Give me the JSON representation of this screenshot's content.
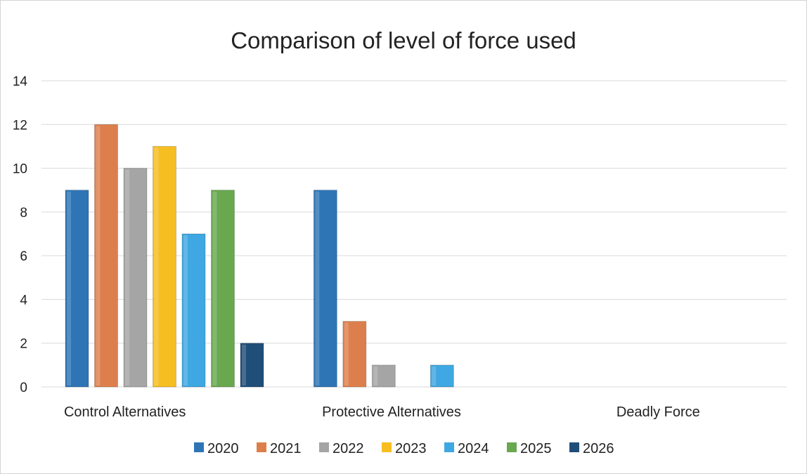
{
  "chart_data": {
    "type": "bar",
    "title": "Comparison of level of force used",
    "xlabel": "",
    "ylabel": "",
    "categories": [
      "Control Alternatives",
      "Protective Alternatives",
      "Deadly Force"
    ],
    "ylim": [
      0,
      14
    ],
    "yticks": [
      0,
      2,
      4,
      6,
      8,
      10,
      12,
      14
    ],
    "grid": true,
    "legend_position": "bottom",
    "series": [
      {
        "name": "2020",
        "color": "#2e75b6",
        "values": [
          9,
          9,
          0
        ]
      },
      {
        "name": "2021",
        "color": "#dd7f4c",
        "values": [
          12,
          3,
          0
        ]
      },
      {
        "name": "2022",
        "color": "#a5a5a5",
        "values": [
          10,
          1,
          0
        ]
      },
      {
        "name": "2023",
        "color": "#f6be21",
        "values": [
          11,
          0,
          0
        ]
      },
      {
        "name": "2024",
        "color": "#3fa7e1",
        "values": [
          7,
          1,
          0
        ]
      },
      {
        "name": "2025",
        "color": "#69a84f",
        "values": [
          9,
          0,
          0
        ]
      },
      {
        "name": "2026",
        "color": "#1f4e79",
        "values": [
          2,
          0,
          0
        ]
      }
    ]
  }
}
